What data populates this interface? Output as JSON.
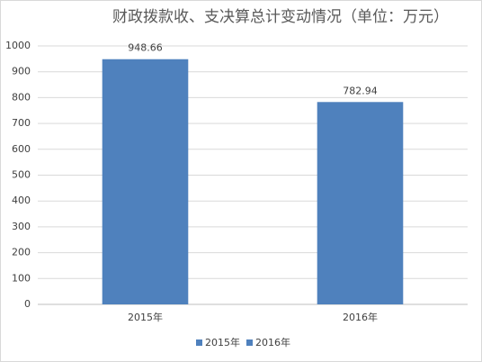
{
  "chart_data": {
    "type": "bar",
    "title": "财政拨款收、支决算总计变动情况（单位：万元）",
    "categories": [
      "2015年",
      "2016年"
    ],
    "values": [
      948.66,
      782.94
    ],
    "color": "#4f81bd",
    "ylim": [
      0,
      1000
    ],
    "yticks": [
      0,
      100,
      200,
      300,
      400,
      500,
      600,
      700,
      800,
      900,
      1000
    ],
    "grid": true,
    "data_labels": true,
    "legend": "bottom"
  }
}
